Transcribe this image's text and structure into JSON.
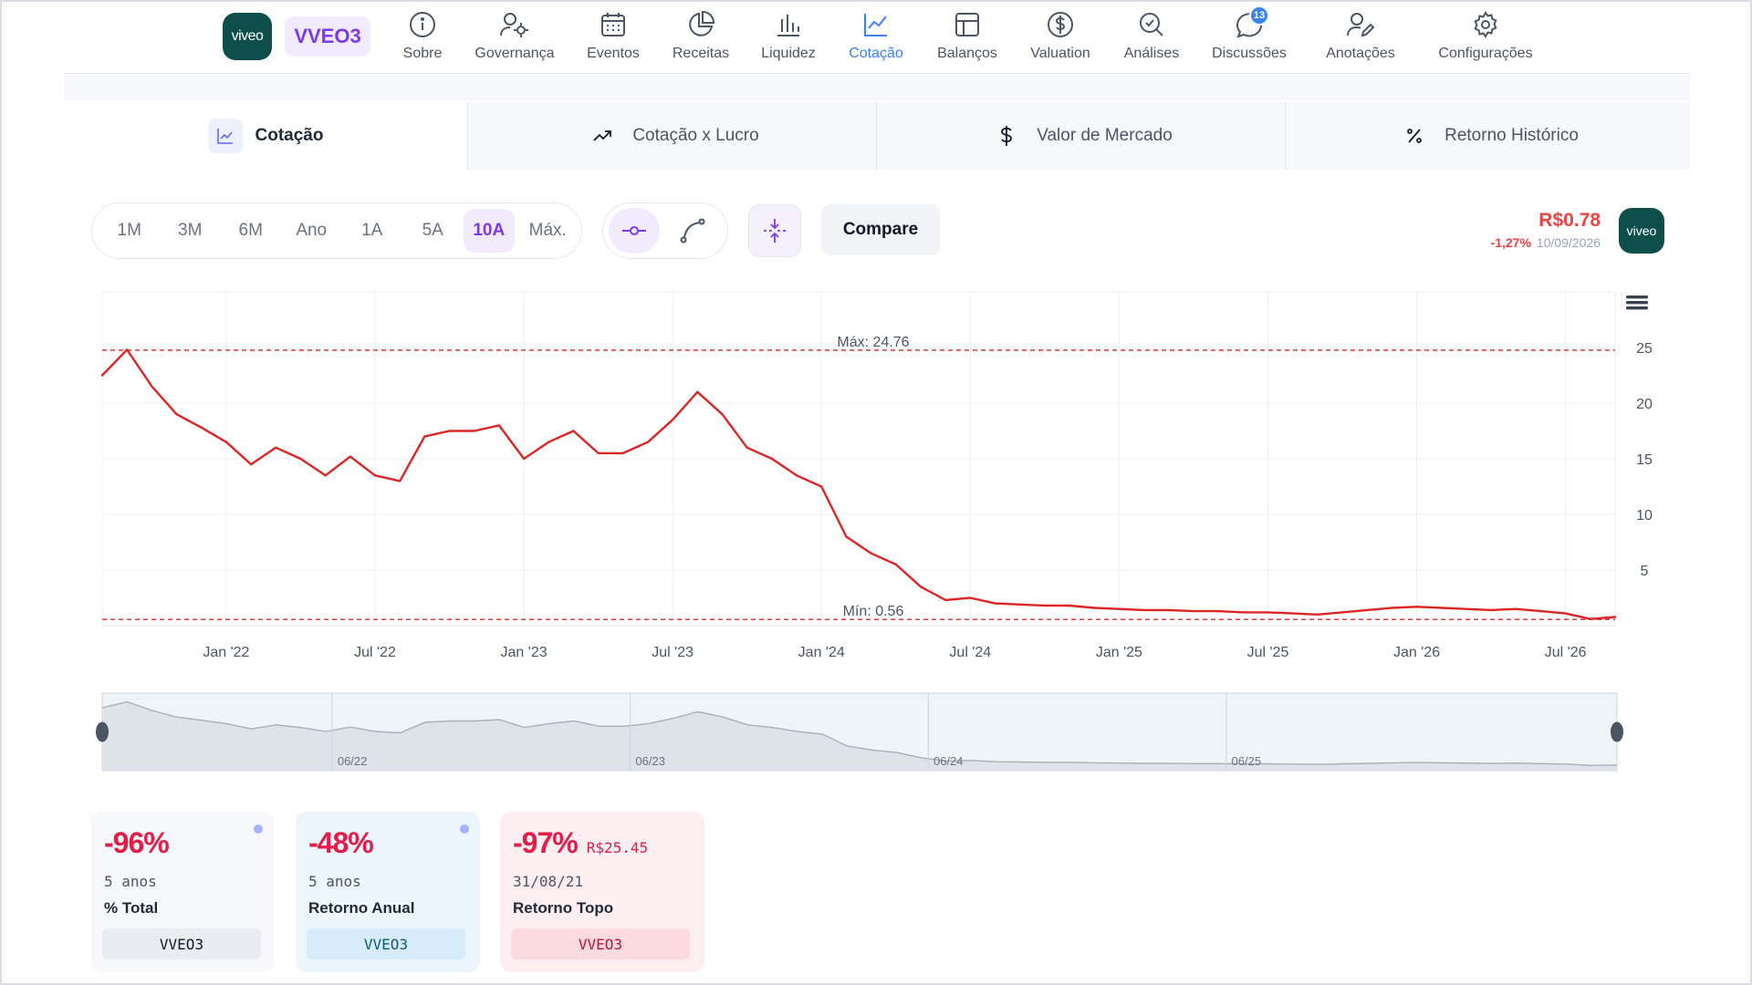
{
  "header": {
    "logo_text": "viveo",
    "ticker": "VVEO3",
    "nav": [
      {
        "label": "Sobre",
        "icon": "info-icon"
      },
      {
        "label": "Governança",
        "icon": "governance-icon"
      },
      {
        "label": "Eventos",
        "icon": "calendar-icon"
      },
      {
        "label": "Receitas",
        "icon": "pie-chart-icon"
      },
      {
        "label": "Liquidez",
        "icon": "bar-chart-icon"
      },
      {
        "label": "Cotação",
        "icon": "line-chart-icon",
        "active": true
      },
      {
        "label": "Balanços",
        "icon": "table-icon"
      },
      {
        "label": "Valuation",
        "icon": "dollar-circle-icon"
      },
      {
        "label": "Análises",
        "icon": "search-check-icon"
      },
      {
        "label": "Discussões",
        "icon": "chat-icon",
        "badge": "13"
      },
      {
        "label": "Anotações",
        "icon": "user-edit-icon"
      },
      {
        "label": "Configurações",
        "icon": "gear-icon"
      }
    ]
  },
  "subtabs": [
    {
      "label": "Cotação",
      "icon": "line-chart-icon",
      "active": true
    },
    {
      "label": "Cotação x Lucro",
      "icon": "trending-up-icon"
    },
    {
      "label": "Valor de Mercado",
      "icon": "dollar-icon"
    },
    {
      "label": "Retorno Histórico",
      "icon": "percent-icon"
    }
  ],
  "controls": {
    "periods": [
      "1M",
      "3M",
      "6M",
      "Ano",
      "1A",
      "5A",
      "10A",
      "Máx."
    ],
    "active_period": "10A",
    "compare_label": "Compare"
  },
  "quote": {
    "price": "R$0.78",
    "change": "-1,27%",
    "date": "10/09/2026",
    "logo_text": "viveo"
  },
  "chart_data": {
    "type": "line",
    "x_ticks": [
      "Jan '22",
      "Jul '22",
      "Jan '23",
      "Jul '23",
      "Jan '24",
      "Jul '24",
      "Jan '25",
      "Jul '25",
      "Jan '26",
      "Jul '26"
    ],
    "y_ticks": [
      5,
      10,
      15,
      20,
      25
    ],
    "ylim": [
      0,
      30
    ],
    "y_axis_position": "right",
    "grid": true,
    "line_color": "#dc2626",
    "max_label": "Máx: 24.76",
    "max_value": 24.76,
    "min_label": "Mín: 0.56",
    "min_value": 0.56,
    "series": [
      {
        "x": [
          "2021-08",
          "2021-09",
          "2021-10",
          "2021-11",
          "2021-12",
          "2022-01",
          "2022-02",
          "2022-03",
          "2022-04",
          "2022-05",
          "2022-06",
          "2022-07",
          "2022-08",
          "2022-09",
          "2022-10",
          "2022-11",
          "2022-12",
          "2023-01",
          "2023-02",
          "2023-03",
          "2023-04",
          "2023-05",
          "2023-06",
          "2023-07",
          "2023-08",
          "2023-09",
          "2023-10",
          "2023-11",
          "2023-12",
          "2024-01",
          "2024-02",
          "2024-03",
          "2024-04",
          "2024-05",
          "2024-06",
          "2024-07",
          "2024-08",
          "2024-09",
          "2024-10",
          "2024-11",
          "2024-12",
          "2025-01",
          "2025-02",
          "2025-03",
          "2025-04",
          "2025-05",
          "2025-06",
          "2025-07",
          "2025-08",
          "2025-09",
          "2025-10",
          "2025-11",
          "2025-12",
          "2026-01",
          "2026-02",
          "2026-03",
          "2026-04",
          "2026-05",
          "2026-06",
          "2026-07",
          "2026-08",
          "2026-09"
        ],
        "values": [
          22.5,
          24.8,
          21.5,
          19.0,
          17.8,
          16.5,
          14.5,
          16.0,
          15.0,
          13.5,
          15.2,
          13.5,
          13.0,
          17.0,
          17.5,
          17.5,
          18.0,
          15.0,
          16.5,
          17.5,
          15.5,
          15.5,
          16.5,
          18.5,
          21.0,
          19.0,
          16.0,
          15.0,
          13.5,
          12.5,
          8.0,
          6.5,
          5.5,
          3.5,
          2.3,
          2.5,
          2.0,
          1.9,
          1.8,
          1.8,
          1.6,
          1.5,
          1.4,
          1.4,
          1.3,
          1.3,
          1.2,
          1.2,
          1.1,
          1.0,
          1.2,
          1.4,
          1.6,
          1.7,
          1.6,
          1.5,
          1.4,
          1.5,
          1.3,
          1.1,
          0.6,
          0.78
        ]
      }
    ],
    "navigator": {
      "x_ticks": [
        "06/22",
        "06/23",
        "06/24",
        "06/25"
      ]
    }
  },
  "cards": [
    {
      "value": "-96%",
      "line1": "5 anos",
      "line2": "% Total",
      "ticker": "VVEO3"
    },
    {
      "value": "-48%",
      "line1": "5 anos",
      "line2": "Retorno Anual",
      "ticker": "VVEO3"
    },
    {
      "value": "-97%",
      "extra": "R$25.45",
      "line1": "31/08/21",
      "line2": "Retorno Topo",
      "ticker": "VVEO3"
    }
  ]
}
